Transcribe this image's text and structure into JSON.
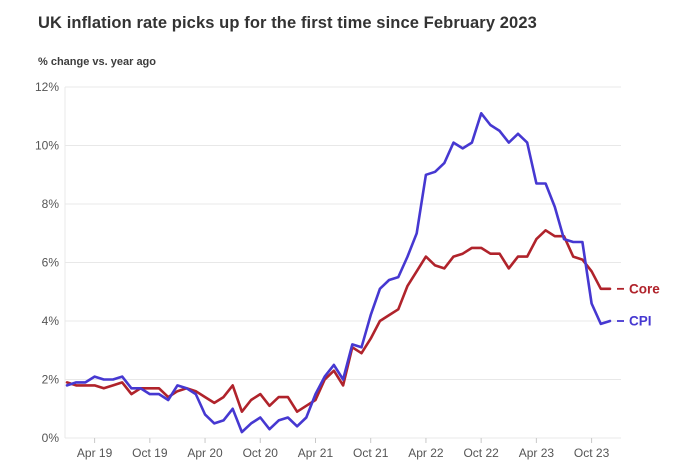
{
  "header": {
    "title": "UK inflation rate picks up for the first time since February 2023",
    "subtitle": "% change vs. year ago"
  },
  "colors": {
    "background": "#ffffff",
    "title_text": "#333333",
    "subtitle_text": "#3d3d3d",
    "grid": "#e8e8e8",
    "tick_mark": "#c8c8c8",
    "axis_text": "#555555",
    "cpi_blue": "#4638d1",
    "core_red": "#b0232b"
  },
  "chart_data": {
    "type": "line",
    "title": "UK inflation rate picks up for the first time since February 2023",
    "ylabel": "% change vs. year ago",
    "ylim": [
      0,
      12
    ],
    "grid": "horizontal",
    "legend_position": "right-end-labels",
    "x_months": [
      "Jan 19",
      "Feb 19",
      "Mar 19",
      "Apr 19",
      "May 19",
      "Jun 19",
      "Jul 19",
      "Aug 19",
      "Sep 19",
      "Oct 19",
      "Nov 19",
      "Dec 19",
      "Jan 20",
      "Feb 20",
      "Mar 20",
      "Apr 20",
      "May 20",
      "Jun 20",
      "Jul 20",
      "Aug 20",
      "Sep 20",
      "Oct 20",
      "Nov 20",
      "Dec 20",
      "Jan 21",
      "Feb 21",
      "Mar 21",
      "Apr 21",
      "May 21",
      "Jun 21",
      "Jul 21",
      "Aug 21",
      "Sep 21",
      "Oct 21",
      "Nov 21",
      "Dec 21",
      "Jan 22",
      "Feb 22",
      "Mar 22",
      "Apr 22",
      "May 22",
      "Jun 22",
      "Jul 22",
      "Aug 22",
      "Sep 22",
      "Oct 22",
      "Nov 22",
      "Dec 22",
      "Jan 23",
      "Feb 23",
      "Mar 23",
      "Apr 23",
      "May 23",
      "Jun 23",
      "Jul 23",
      "Aug 23",
      "Sep 23",
      "Oct 23",
      "Nov 23",
      "Dec 23"
    ],
    "x_ticks": [
      {
        "label": "Apr 19",
        "month_index": 3
      },
      {
        "label": "Oct 19",
        "month_index": 9
      },
      {
        "label": "Apr 20",
        "month_index": 15
      },
      {
        "label": "Oct 20",
        "month_index": 21
      },
      {
        "label": "Apr 21",
        "month_index": 27
      },
      {
        "label": "Oct 21",
        "month_index": 33
      },
      {
        "label": "Apr 22",
        "month_index": 39
      },
      {
        "label": "Oct 22",
        "month_index": 45
      },
      {
        "label": "Apr 23",
        "month_index": 51
      },
      {
        "label": "Oct 23",
        "month_index": 57
      }
    ],
    "y_ticks": [
      {
        "label": "0%",
        "value": 0
      },
      {
        "label": "2%",
        "value": 2
      },
      {
        "label": "4%",
        "value": 4
      },
      {
        "label": "6%",
        "value": 6
      },
      {
        "label": "8%",
        "value": 8
      },
      {
        "label": "10%",
        "value": 10
      },
      {
        "label": "12%",
        "value": 12
      }
    ],
    "series": [
      {
        "name": "Core",
        "color": "#b0232b",
        "values": [
          1.9,
          1.8,
          1.8,
          1.8,
          1.7,
          1.8,
          1.9,
          1.5,
          1.7,
          1.7,
          1.7,
          1.4,
          1.6,
          1.7,
          1.6,
          1.4,
          1.2,
          1.4,
          1.8,
          0.9,
          1.3,
          1.5,
          1.1,
          1.4,
          1.4,
          0.9,
          1.1,
          1.3,
          2.0,
          2.3,
          1.8,
          3.1,
          2.9,
          3.4,
          4.0,
          4.2,
          4.4,
          5.2,
          5.7,
          6.2,
          5.9,
          5.8,
          6.2,
          6.3,
          6.5,
          6.5,
          6.3,
          6.3,
          5.8,
          6.2,
          6.2,
          6.8,
          7.1,
          6.9,
          6.9,
          6.2,
          6.1,
          5.7,
          5.1,
          5.1
        ]
      },
      {
        "name": "CPI",
        "color": "#4638d1",
        "values": [
          1.8,
          1.9,
          1.9,
          2.1,
          2.0,
          2.0,
          2.1,
          1.7,
          1.7,
          1.5,
          1.5,
          1.3,
          1.8,
          1.7,
          1.5,
          0.8,
          0.5,
          0.6,
          1.0,
          0.2,
          0.5,
          0.7,
          0.3,
          0.6,
          0.7,
          0.4,
          0.7,
          1.5,
          2.1,
          2.5,
          2.0,
          3.2,
          3.1,
          4.2,
          5.1,
          5.4,
          5.5,
          6.2,
          7.0,
          9.0,
          9.1,
          9.4,
          10.1,
          9.9,
          10.1,
          11.1,
          10.7,
          10.5,
          10.1,
          10.4,
          10.1,
          8.7,
          8.7,
          7.9,
          6.8,
          6.7,
          6.7,
          4.6,
          3.9,
          4.0
        ]
      }
    ]
  }
}
